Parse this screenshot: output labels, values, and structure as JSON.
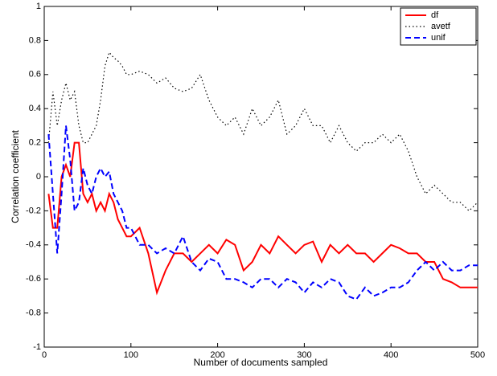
{
  "chart_data": {
    "type": "line",
    "xlabel": "Number of documents sampled",
    "ylabel": "Correlation coefficient",
    "x": [
      5,
      10,
      15,
      20,
      25,
      30,
      35,
      40,
      45,
      50,
      55,
      60,
      65,
      70,
      75,
      80,
      85,
      90,
      95,
      100,
      110,
      120,
      130,
      140,
      150,
      160,
      170,
      180,
      190,
      200,
      210,
      220,
      230,
      240,
      250,
      260,
      270,
      280,
      290,
      300,
      310,
      320,
      330,
      340,
      350,
      360,
      370,
      380,
      390,
      400,
      410,
      420,
      430,
      440,
      450,
      460,
      470,
      480,
      490,
      500
    ],
    "series": [
      {
        "name": "df",
        "color": "#ff0000",
        "dash": "solid",
        "values": [
          -0.1,
          -0.3,
          -0.3,
          0.0,
          0.07,
          0.0,
          0.2,
          0.2,
          -0.1,
          -0.15,
          -0.1,
          -0.2,
          -0.15,
          -0.2,
          -0.1,
          -0.15,
          -0.25,
          -0.3,
          -0.35,
          -0.35,
          -0.3,
          -0.45,
          -0.68,
          -0.55,
          -0.45,
          -0.45,
          -0.5,
          -0.45,
          -0.4,
          -0.45,
          -0.37,
          -0.4,
          -0.55,
          -0.5,
          -0.4,
          -0.45,
          -0.35,
          -0.4,
          -0.45,
          -0.4,
          -0.38,
          -0.5,
          -0.4,
          -0.45,
          -0.4,
          -0.45,
          -0.45,
          -0.5,
          -0.45,
          -0.4,
          -0.42,
          -0.45,
          -0.45,
          -0.5,
          -0.5,
          -0.6,
          -0.62,
          -0.65,
          -0.65,
          -0.65
        ]
      },
      {
        "name": "avetf",
        "color": "#000000",
        "dash": "dotted",
        "values": [
          0.2,
          0.5,
          0.3,
          0.45,
          0.55,
          0.45,
          0.5,
          0.3,
          0.2,
          0.2,
          0.25,
          0.3,
          0.45,
          0.65,
          0.73,
          0.7,
          0.68,
          0.65,
          0.6,
          0.6,
          0.62,
          0.6,
          0.55,
          0.58,
          0.52,
          0.5,
          0.52,
          0.6,
          0.45,
          0.35,
          0.3,
          0.35,
          0.25,
          0.4,
          0.3,
          0.35,
          0.45,
          0.25,
          0.3,
          0.4,
          0.3,
          0.3,
          0.2,
          0.3,
          0.2,
          0.15,
          0.2,
          0.2,
          0.25,
          0.2,
          0.25,
          0.15,
          0.0,
          -0.1,
          -0.05,
          -0.1,
          -0.15,
          -0.15,
          -0.2,
          -0.15
        ]
      },
      {
        "name": "unif",
        "color": "#0000ff",
        "dash": "dashed",
        "values": [
          0.25,
          -0.1,
          -0.45,
          -0.1,
          0.3,
          0.1,
          -0.2,
          -0.15,
          0.05,
          -0.05,
          -0.1,
          0.0,
          0.05,
          0.0,
          0.03,
          -0.1,
          -0.15,
          -0.2,
          -0.3,
          -0.3,
          -0.4,
          -0.4,
          -0.45,
          -0.42,
          -0.45,
          -0.35,
          -0.5,
          -0.55,
          -0.48,
          -0.5,
          -0.6,
          -0.6,
          -0.62,
          -0.65,
          -0.6,
          -0.6,
          -0.65,
          -0.6,
          -0.62,
          -0.68,
          -0.62,
          -0.65,
          -0.6,
          -0.62,
          -0.7,
          -0.72,
          -0.65,
          -0.7,
          -0.68,
          -0.65,
          -0.65,
          -0.62,
          -0.55,
          -0.5,
          -0.55,
          -0.5,
          -0.55,
          -0.55,
          -0.52,
          -0.52
        ]
      }
    ],
    "xlim": [
      0,
      500
    ],
    "xticks": [
      0,
      100,
      200,
      300,
      400,
      500
    ],
    "ylim": [
      -1,
      1
    ],
    "yticks": [
      -1,
      -0.8,
      -0.6,
      -0.4,
      -0.2,
      0,
      0.2,
      0.4,
      0.6,
      0.8,
      1
    ],
    "grid": false,
    "legend": "upper right"
  }
}
